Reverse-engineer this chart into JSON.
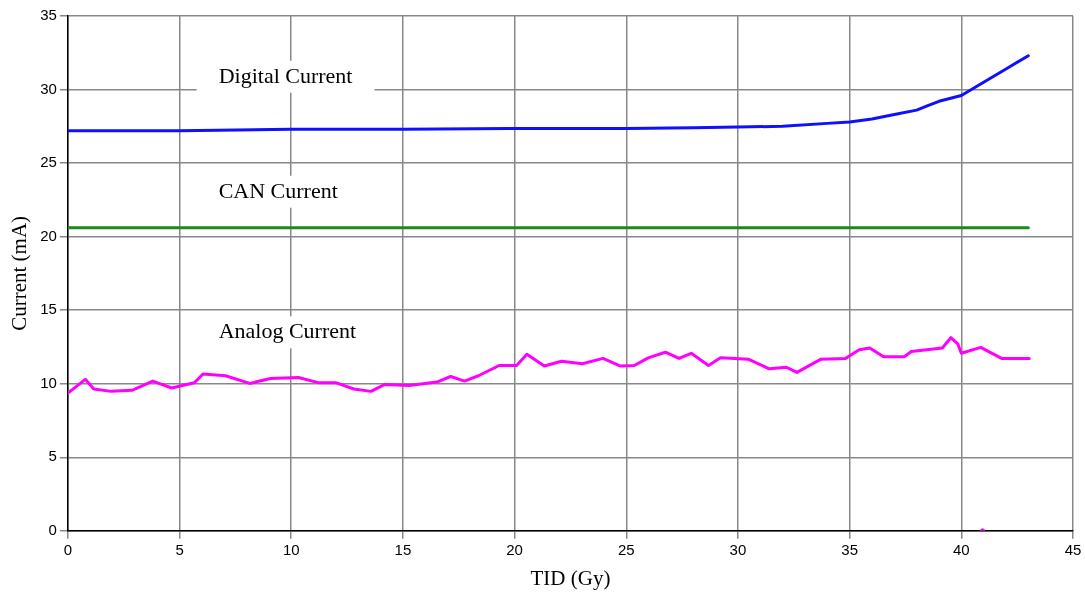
{
  "chart_data": {
    "type": "line",
    "xlabel": "TID (Gy)",
    "ylabel": "Current (mA)",
    "xlim": [
      0,
      45
    ],
    "ylim": [
      0,
      35
    ],
    "xticks": [
      0,
      5,
      10,
      15,
      20,
      25,
      30,
      35,
      40,
      45
    ],
    "yticks": [
      0,
      5,
      10,
      15,
      20,
      25,
      30,
      35
    ],
    "grid": true,
    "legend": false,
    "marker": "none",
    "line_style": "solid",
    "series": [
      {
        "name": "Digital Current",
        "color": "#1010ff",
        "x": [
          0,
          5,
          10,
          15,
          20,
          25,
          28,
          30,
          32,
          34,
          35,
          36,
          37,
          38,
          38.5,
          39,
          40,
          41,
          42,
          43
        ],
        "values": [
          27.2,
          27.2,
          27.3,
          27.3,
          27.35,
          27.35,
          27.4,
          27.45,
          27.5,
          27.7,
          27.8,
          28.0,
          28.3,
          28.6,
          28.9,
          29.2,
          29.6,
          30.5,
          31.4,
          32.3
        ]
      },
      {
        "name": "CAN Current",
        "color": "#1a8a1a",
        "x": [
          0,
          5,
          10,
          15,
          20,
          25,
          30,
          35,
          40,
          43
        ],
        "values": [
          20.6,
          20.6,
          20.6,
          20.6,
          20.6,
          20.6,
          20.6,
          20.6,
          20.6,
          20.6
        ]
      },
      {
        "name": "Analog Current",
        "color": "#ff00ff",
        "x": [
          0,
          0.78,
          1.16,
          1.94,
          2.87,
          3.8,
          4.65,
          5.66,
          6.05,
          7.06,
          8.14,
          9.07,
          10.32,
          11.25,
          12.02,
          12.8,
          13.57,
          14.19,
          15.28,
          16.52,
          17.14,
          17.76,
          18.38,
          19.31,
          20.09,
          20.55,
          21.33,
          22.1,
          23.03,
          23.96,
          24.74,
          25.36,
          25.98,
          26.75,
          27.36,
          27.91,
          28.68,
          29.22,
          30.46,
          31.4,
          32.17,
          32.64,
          33.72,
          34.81,
          35.43,
          35.9,
          36.52,
          37.45,
          37.76,
          39.15,
          39.53,
          39.84,
          40.0,
          40.87,
          41.8,
          43.04
        ],
        "values": [
          9.36,
          10.3,
          9.64,
          9.48,
          9.55,
          10.18,
          9.71,
          10.06,
          10.66,
          10.54,
          10.02,
          10.35,
          10.42,
          10.06,
          10.06,
          9.64,
          9.48,
          9.95,
          9.88,
          10.11,
          10.49,
          10.18,
          10.54,
          11.24,
          11.24,
          12.0,
          11.2,
          11.53,
          11.36,
          11.72,
          11.2,
          11.24,
          11.76,
          12.14,
          11.72,
          12.07,
          11.24,
          11.76,
          11.67,
          11.01,
          11.12,
          10.77,
          11.67,
          11.72,
          12.31,
          12.43,
          11.83,
          11.83,
          12.19,
          12.43,
          13.13,
          12.71,
          12.07,
          12.47,
          11.72,
          11.72
        ]
      },
      {
        "type": "scatter",
        "marker": "circle",
        "color": "#ff00ff",
        "x": [
          40.95
        ],
        "values": [
          0
        ]
      }
    ]
  }
}
